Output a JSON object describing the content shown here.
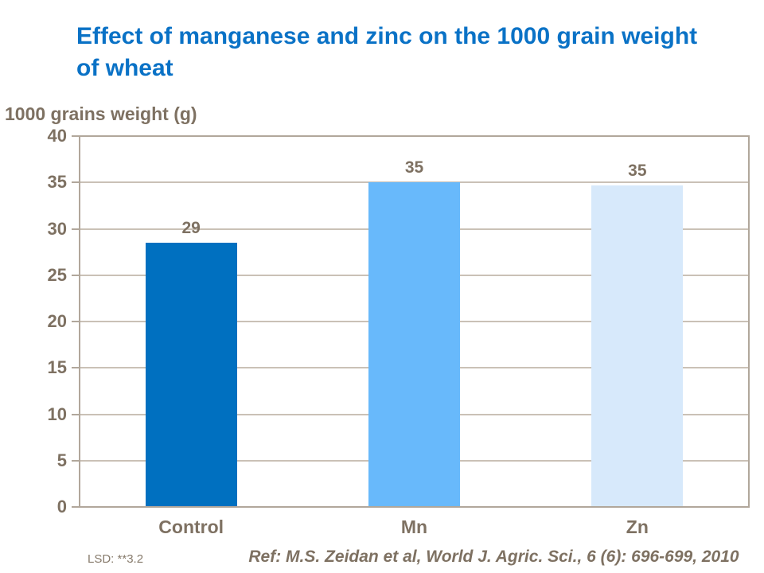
{
  "title": "Effect of manganese and zinc on the 1000 grain weight of wheat",
  "y_axis_title": "1000 grains weight (g)",
  "footnotes": {
    "lsd": "LSD: **3.2",
    "reference": "Ref: M.S. Zeidan et al, World J. Agric. Sci., 6 (6): 696-699, 2010"
  },
  "colors": {
    "title_text": "#0A72C6",
    "chart_text": "#7E7162",
    "gridline": "#CAC1B6",
    "axis_line": "#B1A79B",
    "background": "#FFFFFF"
  },
  "chart_data": {
    "type": "bar",
    "title": "Effect of manganese and zinc on the 1000 grain weight of wheat",
    "categories": [
      "Control",
      "Mn",
      "Zn"
    ],
    "values": [
      29,
      35,
      35
    ],
    "data_labels": [
      "29",
      "35",
      "35"
    ],
    "bar_heights_as_drawn": [
      28.5,
      35,
      34.7
    ],
    "bar_colors": [
      "#0070C0",
      "#68B9FB",
      "#D7E9FB"
    ],
    "xlabel": "",
    "ylabel": "1000 grains weight (g)",
    "ylim": [
      0,
      40
    ],
    "yticks": [
      0,
      5,
      10,
      15,
      20,
      25,
      30,
      35,
      40
    ],
    "grid": true,
    "legend_position": "none",
    "annotations": [
      "LSD: **3.2",
      "Ref: M.S. Zeidan et al, World J. Agric. Sci., 6 (6): 696-699, 2010"
    ]
  }
}
